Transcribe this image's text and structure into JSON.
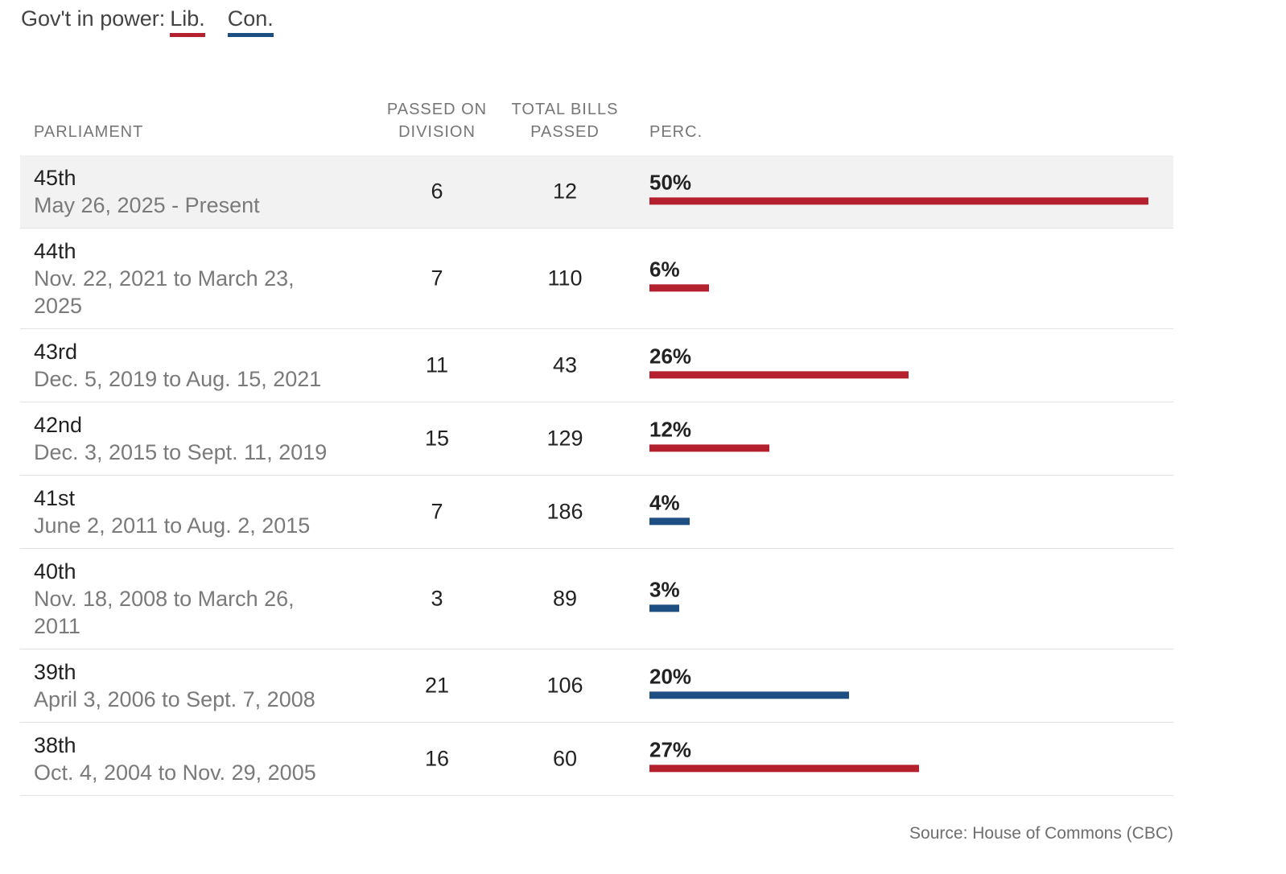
{
  "legend": {
    "prefix": "Gov't in power:",
    "items": [
      {
        "label": "Lib.",
        "color": "#b5202e"
      },
      {
        "label": "Con.",
        "color": "#1d4f82"
      }
    ]
  },
  "headers": {
    "parliament": "PARLIAMENT",
    "passed_on_division": "PASSED ON DIVISION",
    "total_bills_passed": "TOTAL BILLS PASSED",
    "perc": "PERC."
  },
  "chart_data": {
    "type": "table",
    "title": "",
    "columns": [
      "PARLIAMENT",
      "PASSED ON DIVISION",
      "TOTAL BILLS PASSED",
      "PERC."
    ],
    "bar_max_percent": 50,
    "rows": [
      {
        "parliament": "45th",
        "dates": "May 26, 2025 - Present",
        "passed_on_division": "6",
        "total_bills_passed": "12",
        "perc_label": "50%",
        "perc": 50,
        "party": "Lib.",
        "color": "#b5202e"
      },
      {
        "parliament": "44th",
        "dates": "Nov. 22, 2021 to March 23, 2025",
        "passed_on_division": "7",
        "total_bills_passed": "110",
        "perc_label": "6%",
        "perc": 6,
        "party": "Lib.",
        "color": "#b5202e"
      },
      {
        "parliament": "43rd",
        "dates": "Dec. 5, 2019 to Aug. 15, 2021",
        "passed_on_division": "11",
        "total_bills_passed": "43",
        "perc_label": "26%",
        "perc": 26,
        "party": "Lib.",
        "color": "#b5202e"
      },
      {
        "parliament": "42nd",
        "dates": "Dec. 3, 2015 to Sept. 11, 2019",
        "passed_on_division": "15",
        "total_bills_passed": "129",
        "perc_label": "12%",
        "perc": 12,
        "party": "Lib.",
        "color": "#b5202e"
      },
      {
        "parliament": "41st",
        "dates": "June 2, 2011 to Aug. 2, 2015",
        "passed_on_division": "7",
        "total_bills_passed": "186",
        "perc_label": "4%",
        "perc": 4,
        "party": "Con.",
        "color": "#1d4f82"
      },
      {
        "parliament": "40th",
        "dates": "Nov. 18, 2008 to March 26, 2011",
        "passed_on_division": "3",
        "total_bills_passed": "89",
        "perc_label": "3%",
        "perc": 3,
        "party": "Con.",
        "color": "#1d4f82"
      },
      {
        "parliament": "39th",
        "dates": "April 3, 2006 to Sept. 7, 2008",
        "passed_on_division": "21",
        "total_bills_passed": "106",
        "perc_label": "20%",
        "perc": 20,
        "party": "Con.",
        "color": "#1d4f82"
      },
      {
        "parliament": "38th",
        "dates": "Oct. 4, 2004 to Nov. 29, 2005",
        "passed_on_division": "16",
        "total_bills_passed": "60",
        "perc_label": "27%",
        "perc": 27,
        "party": "Lib.",
        "color": "#b5202e"
      }
    ]
  },
  "source": "Source: House of Commons (CBC)"
}
